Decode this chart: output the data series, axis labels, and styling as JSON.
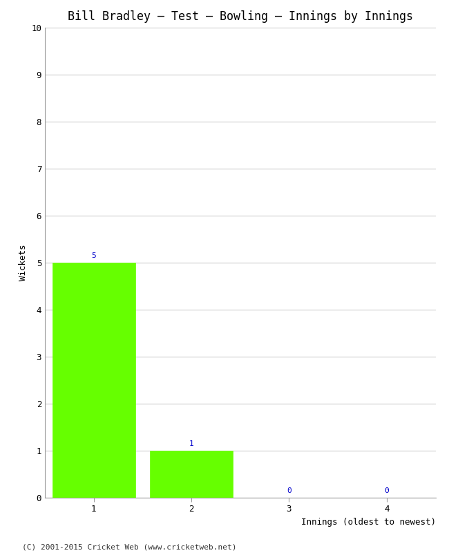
{
  "title": "Bill Bradley – Test – Bowling – Innings by Innings",
  "xlabel": "Innings (oldest to newest)",
  "ylabel": "Wickets",
  "categories": [
    1,
    2,
    3,
    4
  ],
  "values": [
    5,
    1,
    0,
    0
  ],
  "bar_color": "#66ff00",
  "bar_edge_color": "#66ff00",
  "annotation_color": "#0000cc",
  "annotation_fontsize": 8,
  "ylim": [
    0,
    10
  ],
  "yticks": [
    0,
    1,
    2,
    3,
    4,
    5,
    6,
    7,
    8,
    9,
    10
  ],
  "xticks": [
    1,
    2,
    3,
    4
  ],
  "background_color": "#ffffff",
  "grid_color": "#cccccc",
  "title_fontsize": 12,
  "axis_label_fontsize": 9,
  "tick_fontsize": 9,
  "footer_text": "(C) 2001-2015 Cricket Web (www.cricketweb.net)",
  "footer_fontsize": 8,
  "footer_color": "#333333",
  "bar_width": 0.85,
  "xlim": [
    0.5,
    4.5
  ]
}
